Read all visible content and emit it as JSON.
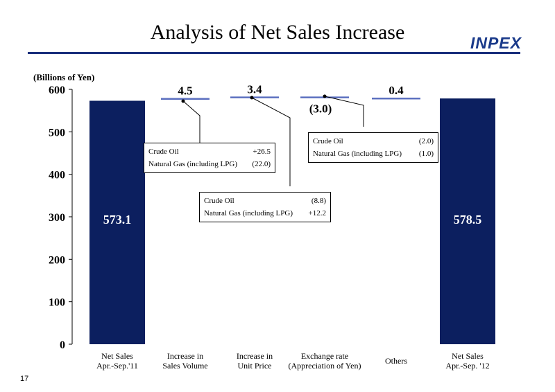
{
  "page": {
    "title": "Analysis of Net Sales Increase",
    "brand": "INPEX",
    "page_number": "17"
  },
  "chart_data": {
    "type": "bar",
    "subtype": "waterfall",
    "ylabel": "(Billions of Yen)",
    "ylim": [
      0,
      600
    ],
    "yticks": [
      0,
      100,
      200,
      300,
      400,
      500,
      600
    ],
    "grid": false,
    "colors": {
      "total_bar": "#0c1f5f",
      "step_line": "#5b6fbf",
      "leader": "#000000"
    },
    "categories": [
      "Net Sales\nApr.-Sep.'11",
      "Increase in\nSales Volume",
      "Increase in\nUnit Price",
      "Exchange rate\n(Appreciation of Yen)",
      "Others",
      "Net Sales\nApr.-Sep. '12"
    ],
    "values": [
      573.1,
      4.5,
      3.4,
      -3.0,
      0.4,
      578.5
    ],
    "value_labels": [
      "573.1",
      "4.5",
      "3.4",
      "(3.0)",
      "0.4",
      "578.5"
    ],
    "breakdowns": [
      {
        "category_index": 1,
        "rows": [
          {
            "label": "Crude  Oil",
            "value": "+26.5"
          },
          {
            "label": "Natural Gas (including LPG)",
            "value": "(22.0)"
          }
        ]
      },
      {
        "category_index": 2,
        "rows": [
          {
            "label": "Crude  Oil",
            "value": "(8.8)"
          },
          {
            "label": "Natural Gas (including LPG)",
            "value": "+12.2"
          }
        ]
      },
      {
        "category_index": 3,
        "rows": [
          {
            "label": "Crude  Oil",
            "value": "(2.0)"
          },
          {
            "label": "Natural Gas (including LPG)",
            "value": "(1.0)"
          }
        ]
      }
    ]
  }
}
